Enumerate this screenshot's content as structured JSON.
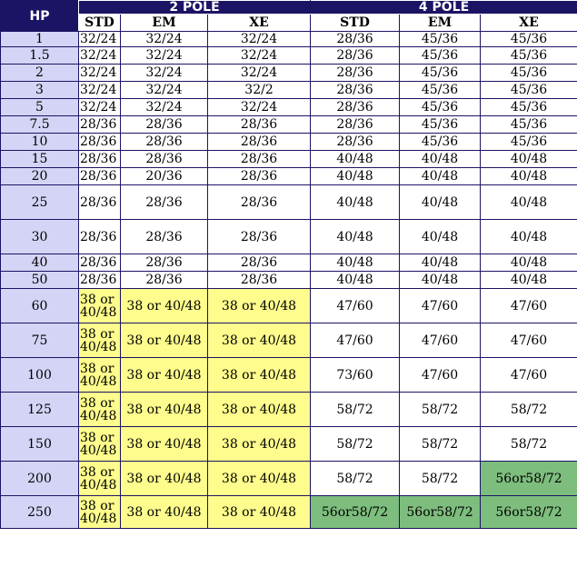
{
  "header": {
    "hp": "HP",
    "group_2pole": "2 POLE",
    "group_4pole": "4 POLE",
    "sub": [
      "STD",
      "EM",
      "XE",
      "STD",
      "EM",
      "XE"
    ]
  },
  "rows": [
    {
      "hp": "1",
      "cells": [
        "32/24",
        "32/24",
        "32/24",
        "28/36",
        "45/36",
        "45/36"
      ]
    },
    {
      "hp": "1.5",
      "cells": [
        "32/24",
        "32/24",
        "32/24",
        "28/36",
        "45/36",
        "45/36"
      ]
    },
    {
      "hp": "2",
      "cells": [
        "32/24",
        "32/24",
        "32/24",
        "28/36",
        "45/36",
        "45/36"
      ]
    },
    {
      "hp": "3",
      "cells": [
        "32/24",
        "32/24",
        "32/2",
        "28/36",
        "45/36",
        "45/36"
      ]
    },
    {
      "hp": "5",
      "cells": [
        "32/24",
        "32/24",
        "32/24",
        "28/36",
        "45/36",
        "45/36"
      ]
    },
    {
      "hp": "7.5",
      "cells": [
        "28/36",
        "28/36",
        "28/36",
        "28/36",
        "45/36",
        "45/36"
      ]
    },
    {
      "hp": "10",
      "cells": [
        "28/36",
        "28/36",
        "28/36",
        "28/36",
        "45/36",
        "45/36"
      ]
    },
    {
      "hp": "15",
      "cells": [
        "28/36",
        "28/36",
        "28/36",
        "40/48",
        "40/48",
        "40/48"
      ]
    },
    {
      "hp": "20",
      "cells": [
        "28/36",
        "20/36",
        "28/36",
        "40/48",
        "40/48",
        "40/48"
      ]
    },
    {
      "hp": "25",
      "cells": [
        "28/36",
        "28/36",
        "28/36",
        "40/48",
        "40/48",
        "40/48"
      ]
    },
    {
      "hp": "30",
      "cells": [
        "28/36",
        "28/36",
        "28/36",
        "40/48",
        "40/48",
        "40/48"
      ]
    },
    {
      "hp": "40",
      "cells": [
        "28/36",
        "28/36",
        "28/36",
        "40/48",
        "40/48",
        "40/48"
      ]
    },
    {
      "hp": "50",
      "cells": [
        "28/36",
        "28/36",
        "28/36",
        "40/48",
        "40/48",
        "40/48"
      ]
    },
    {
      "hp": "60",
      "cells": [
        "38 or 40/48",
        "38 or 40/48",
        "38 or 40/48",
        "47/60",
        "47/60",
        "47/60"
      ]
    },
    {
      "hp": "75",
      "cells": [
        "38 or 40/48",
        "38 or 40/48",
        "38 or 40/48",
        "47/60",
        "47/60",
        "47/60"
      ]
    },
    {
      "hp": "100",
      "cells": [
        "38 or 40/48",
        "38 or 40/48",
        "38 or 40/48",
        "73/60",
        "47/60",
        "47/60"
      ]
    },
    {
      "hp": "125",
      "cells": [
        "38 or 40/48",
        "38 or 40/48",
        "38 or 40/48",
        "58/72",
        "58/72",
        "58/72"
      ]
    },
    {
      "hp": "150",
      "cells": [
        "38 or 40/48",
        "38 or 40/48",
        "38 or 40/48",
        "58/72",
        "58/72",
        "58/72"
      ]
    },
    {
      "hp": "200",
      "cells": [
        "38 or 40/48",
        "38 or 40/48",
        "38 or 40/48",
        "58/72",
        "58/72",
        "56or58/72"
      ]
    },
    {
      "hp": "250",
      "cells": [
        "38 or 40/48",
        "38 or 40/48",
        "38 or 40/48",
        "56or58/72",
        "56or58/72",
        "56or58/72"
      ]
    }
  ],
  "colors": {
    "header_bg": "#1b1464",
    "hp_bg": "#d4d4f6",
    "highlight_yellow": "#fdfc8c",
    "highlight_green": "#7dbd7d"
  }
}
